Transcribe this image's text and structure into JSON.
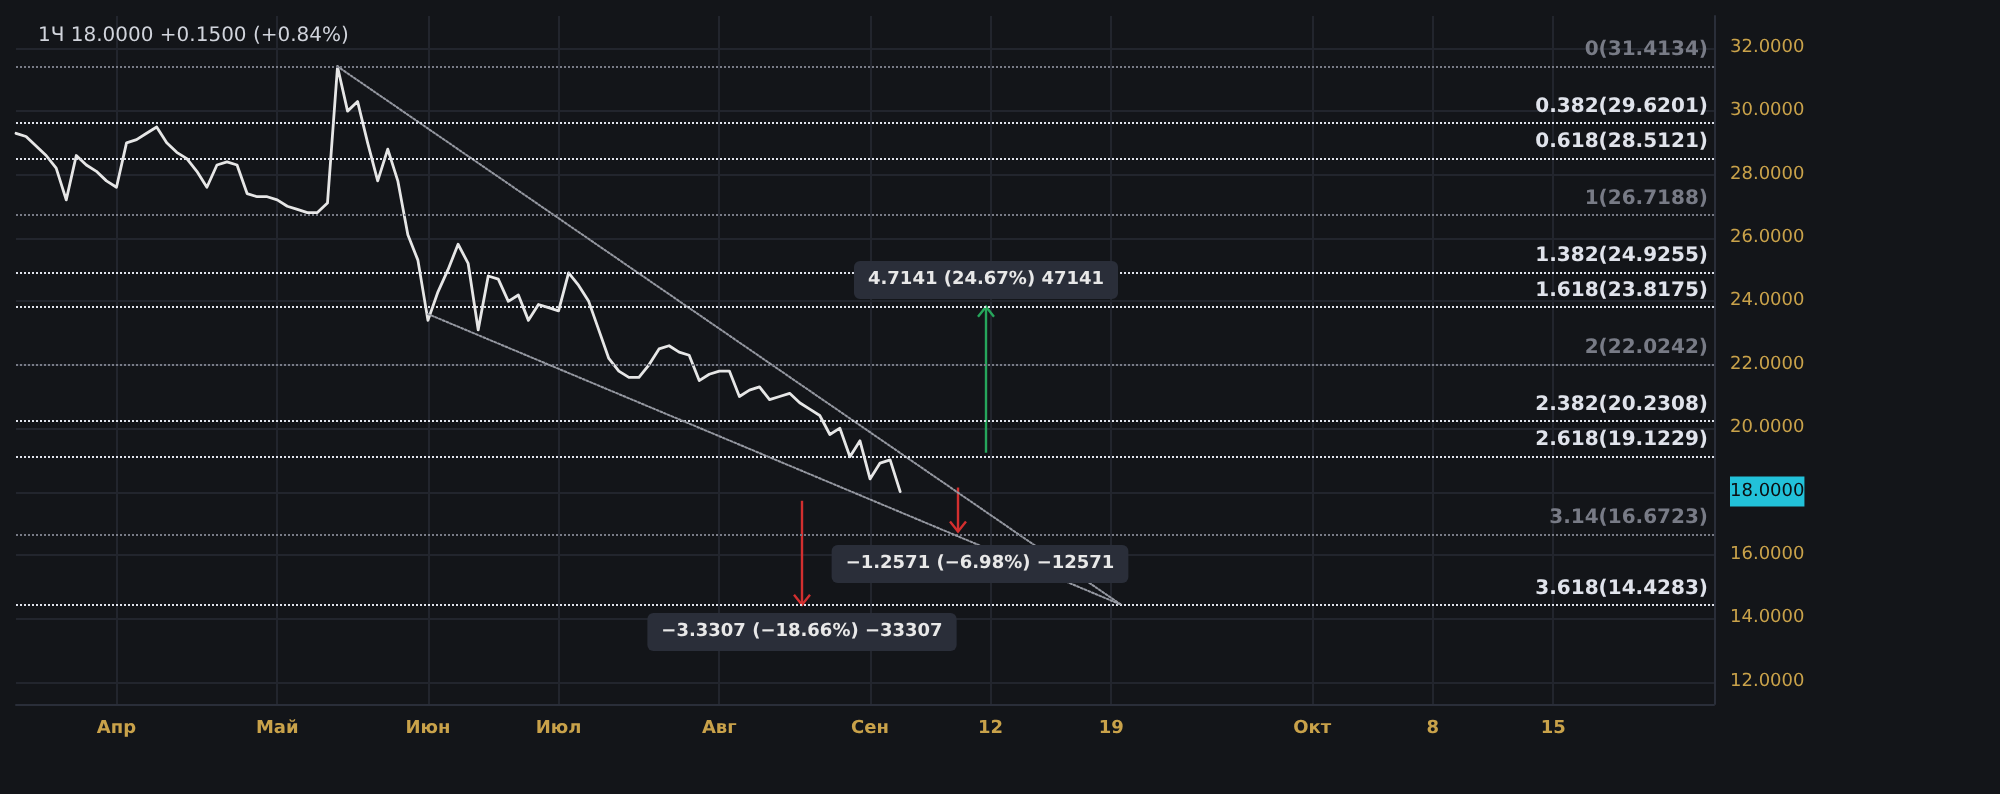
{
  "chart_data": {
    "type": "line",
    "title": "1Ч 18.0000 +0.1500 (+0.84%)",
    "categories": [
      null,
      null,
      null,
      null,
      null,
      null,
      null,
      null,
      null,
      null,
      "Апр",
      null,
      null,
      null,
      null,
      null,
      null,
      null,
      null,
      null,
      null,
      null,
      null,
      null,
      null,
      null,
      "Май",
      null,
      null,
      null,
      null,
      null,
      null,
      null,
      null,
      null,
      null,
      null,
      null,
      null,
      null,
      "Июн",
      null,
      null,
      null,
      null,
      null,
      null,
      null,
      null,
      null,
      null,
      null,
      null,
      "Июл",
      null,
      null,
      null,
      null,
      null,
      null,
      null,
      null,
      null,
      null,
      null,
      null,
      null,
      null,
      null,
      "Авг",
      null,
      null,
      null,
      null,
      null,
      null,
      null,
      null,
      null,
      null,
      null,
      null,
      null,
      null,
      "Сен",
      null,
      null,
      null,
      null,
      null,
      null,
      null,
      null,
      null,
      null,
      null,
      "12",
      null,
      null,
      null,
      null,
      null,
      null,
      null,
      null,
      null,
      null,
      null,
      "19",
      null,
      null,
      null,
      null,
      null,
      null,
      null,
      null,
      null,
      null,
      null,
      null,
      null,
      null,
      null,
      null,
      null,
      null,
      null,
      "Окт",
      null,
      null,
      null,
      null,
      null,
      null,
      null,
      null,
      null,
      null,
      null,
      "8",
      null,
      null,
      null,
      null,
      null,
      null,
      null,
      null,
      null,
      null,
      null,
      "15",
      null,
      null,
      null,
      null,
      null,
      null,
      null,
      null,
      null,
      null,
      null,
      null,
      null,
      null,
      null,
      null
    ],
    "ylim": [
      11.3,
      33.0
    ],
    "yticks": [
      {
        "value": 12,
        "label": "12.0000"
      },
      {
        "value": 14,
        "label": "14.0000"
      },
      {
        "value": 16,
        "label": "16.0000"
      },
      {
        "value": 18,
        "label": "18.0000"
      },
      {
        "value": 20,
        "label": "20.0000"
      },
      {
        "value": 22,
        "label": "22.0000"
      },
      {
        "value": 24,
        "label": "24.0000"
      },
      {
        "value": 26,
        "label": "26.0000"
      },
      {
        "value": 28,
        "label": "28.0000"
      },
      {
        "value": 30,
        "label": "30.0000"
      },
      {
        "value": 32,
        "label": "32.0000"
      }
    ],
    "grid": true,
    "marker": "none",
    "series": [
      {
        "color": "#e6e6e6",
        "line_style": "solid",
        "values": [
          29.3,
          29.2,
          28.9,
          28.6,
          28.2,
          27.2,
          28.6,
          28.3,
          28.1,
          27.8,
          27.6,
          29.0,
          29.1,
          29.3,
          29.5,
          29.0,
          28.7,
          28.5,
          28.1,
          27.6,
          28.3,
          28.4,
          28.3,
          27.4,
          27.3,
          27.3,
          27.2,
          27.0,
          26.9,
          26.8,
          26.8,
          27.1,
          31.4,
          30.0,
          30.3,
          29.0,
          27.8,
          28.8,
          27.8,
          26.1,
          25.3,
          23.4,
          24.3,
          25.0,
          25.8,
          25.2,
          23.1,
          24.8,
          24.7,
          24.0,
          24.2,
          23.4,
          23.9,
          23.8,
          23.7,
          24.9,
          24.5,
          24.0,
          23.1,
          22.2,
          21.8,
          21.6,
          21.6,
          22.0,
          22.5,
          22.6,
          22.4,
          22.3,
          21.5,
          21.7,
          21.8,
          21.8,
          21.0,
          21.2,
          21.3,
          20.9,
          21.0,
          21.1,
          20.8,
          20.6,
          20.4,
          19.8,
          20.0,
          19.1,
          19.6,
          18.4,
          18.9,
          19.0,
          18.0,
          null,
          null,
          null,
          null,
          null,
          null,
          null,
          null,
          null,
          null,
          null,
          null,
          null,
          null,
          null,
          null,
          null,
          null,
          null,
          null,
          null,
          null,
          null,
          null,
          null,
          null,
          null,
          null,
          null,
          null,
          null,
          null,
          null,
          null,
          null,
          null,
          null,
          null,
          null,
          null,
          null,
          null,
          null,
          null,
          null,
          null,
          null,
          null,
          null,
          null,
          null,
          null,
          null,
          null,
          null,
          null,
          null,
          null,
          null,
          null,
          null,
          null,
          null,
          null,
          null,
          null,
          null,
          null,
          null,
          null,
          null,
          null,
          null,
          null,
          null,
          null,
          null,
          null,
          null,
          null,
          null
        ]
      },
      {
        "color": "#9598a1",
        "line_style": "dotted",
        "values": [
          null,
          null,
          null,
          null,
          null,
          null,
          null,
          null,
          null,
          null,
          null,
          null,
          null,
          null,
          null,
          null,
          null,
          null,
          null,
          null,
          null,
          null,
          null,
          null,
          null,
          null,
          null,
          null,
          null,
          null,
          null,
          null,
          31.41,
          null,
          null,
          null,
          null,
          null,
          null,
          null,
          null,
          null,
          null,
          null,
          null,
          null,
          null,
          null,
          null,
          null,
          null,
          null,
          null,
          null,
          null,
          null,
          null,
          null,
          null,
          null,
          null,
          null,
          null,
          null,
          null,
          null,
          null,
          null,
          null,
          null,
          null,
          null,
          null,
          null,
          null,
          null,
          null,
          null,
          null,
          null,
          null,
          null,
          null,
          null,
          null,
          null,
          null,
          null,
          null,
          null,
          null,
          null,
          null,
          null,
          null,
          null,
          null,
          null,
          null,
          null,
          null,
          null,
          null,
          null,
          null,
          null,
          null,
          null,
          null,
          null,
          14.43,
          null,
          null,
          null,
          null,
          null,
          null,
          null,
          null,
          null,
          null,
          null,
          null,
          null,
          null,
          null,
          null,
          null,
          null,
          null,
          null,
          null,
          null,
          null,
          null,
          null,
          null,
          null,
          null,
          null,
          null,
          null,
          null,
          null,
          null,
          null,
          null,
          null,
          null,
          null,
          null,
          null,
          null,
          null,
          null,
          null,
          null,
          null,
          null,
          null,
          null,
          null,
          null,
          null,
          null,
          null,
          null,
          null,
          null,
          null
        ]
      },
      {
        "color": "#9598a1",
        "line_style": "dotted",
        "values": [
          null,
          null,
          null,
          null,
          null,
          null,
          null,
          null,
          null,
          null,
          null,
          null,
          null,
          null,
          null,
          null,
          null,
          null,
          null,
          null,
          null,
          null,
          null,
          null,
          null,
          null,
          null,
          null,
          null,
          null,
          null,
          null,
          null,
          null,
          null,
          null,
          null,
          null,
          null,
          null,
          null,
          23.6,
          null,
          null,
          null,
          null,
          null,
          null,
          null,
          null,
          null,
          null,
          null,
          null,
          null,
          null,
          null,
          null,
          null,
          null,
          null,
          null,
          null,
          null,
          null,
          null,
          null,
          null,
          null,
          null,
          null,
          null,
          null,
          null,
          null,
          null,
          null,
          null,
          null,
          null,
          null,
          null,
          null,
          null,
          null,
          null,
          null,
          null,
          null,
          null,
          null,
          null,
          null,
          null,
          null,
          null,
          null,
          null,
          null,
          null,
          null,
          null,
          null,
          null,
          null,
          null,
          null,
          null,
          null,
          null,
          14.43,
          null,
          null,
          null,
          null,
          null,
          null,
          null,
          null,
          null,
          null,
          null,
          null,
          null,
          null,
          null,
          null,
          null,
          null,
          null,
          null,
          null,
          null,
          null,
          null,
          null,
          null,
          null,
          null,
          null,
          null,
          null,
          null,
          null,
          null,
          null,
          null,
          null,
          null,
          null,
          null,
          null,
          null,
          null,
          null,
          null,
          null,
          null,
          null,
          null,
          null,
          null,
          null,
          null,
          null,
          null,
          null,
          null,
          null,
          null
        ]
      }
    ],
    "ref_lines": [
      {
        "axis": "y",
        "value": 31.4134,
        "label": "0(31.4134)",
        "color": "#787b86",
        "line_style": "dotted"
      },
      {
        "axis": "y",
        "value": 29.6201,
        "label": "0.382(29.6201)",
        "color": "#e0e3eb",
        "line_style": "dotted"
      },
      {
        "axis": "y",
        "value": 28.5121,
        "label": "0.618(28.5121)",
        "color": "#e0e3eb",
        "line_style": "dotted"
      },
      {
        "axis": "y",
        "value": 26.7188,
        "label": "1(26.7188)",
        "color": "#787b86",
        "line_style": "dotted"
      },
      {
        "axis": "y",
        "value": 24.9255,
        "label": "1.382(24.9255)",
        "color": "#e0e3eb",
        "line_style": "dotted"
      },
      {
        "axis": "y",
        "value": 23.8175,
        "label": "1.618(23.8175)",
        "color": "#e0e3eb",
        "line_style": "dotted"
      },
      {
        "axis": "y",
        "value": 22.0242,
        "label": "2(22.0242)",
        "color": "#787b86",
        "line_style": "dotted"
      },
      {
        "axis": "y",
        "value": 20.2308,
        "label": "2.382(20.2308)",
        "color": "#e0e3eb",
        "line_style": "dotted"
      },
      {
        "axis": "y",
        "value": 19.1229,
        "label": "2.618(19.1229)",
        "color": "#e0e3eb",
        "line_style": "dotted"
      },
      {
        "axis": "y",
        "value": 16.6723,
        "label": "3.14(16.6723)",
        "color": "#787b86",
        "line_style": "dotted"
      },
      {
        "axis": "y",
        "value": 14.4283,
        "label": "3.618(14.4283)",
        "color": "#e0e3eb",
        "line_style": "dotted"
      }
    ],
    "annotations": [
      {
        "text": "4.7141 (24.67%) 47141",
        "y": 23.83
      },
      {
        "text": "−1.2571 (−6.98%) −12571",
        "y": 16.74
      },
      {
        "text": "−3.3307 (−18.66%) −33307",
        "y": 14.43
      }
    ]
  }
}
